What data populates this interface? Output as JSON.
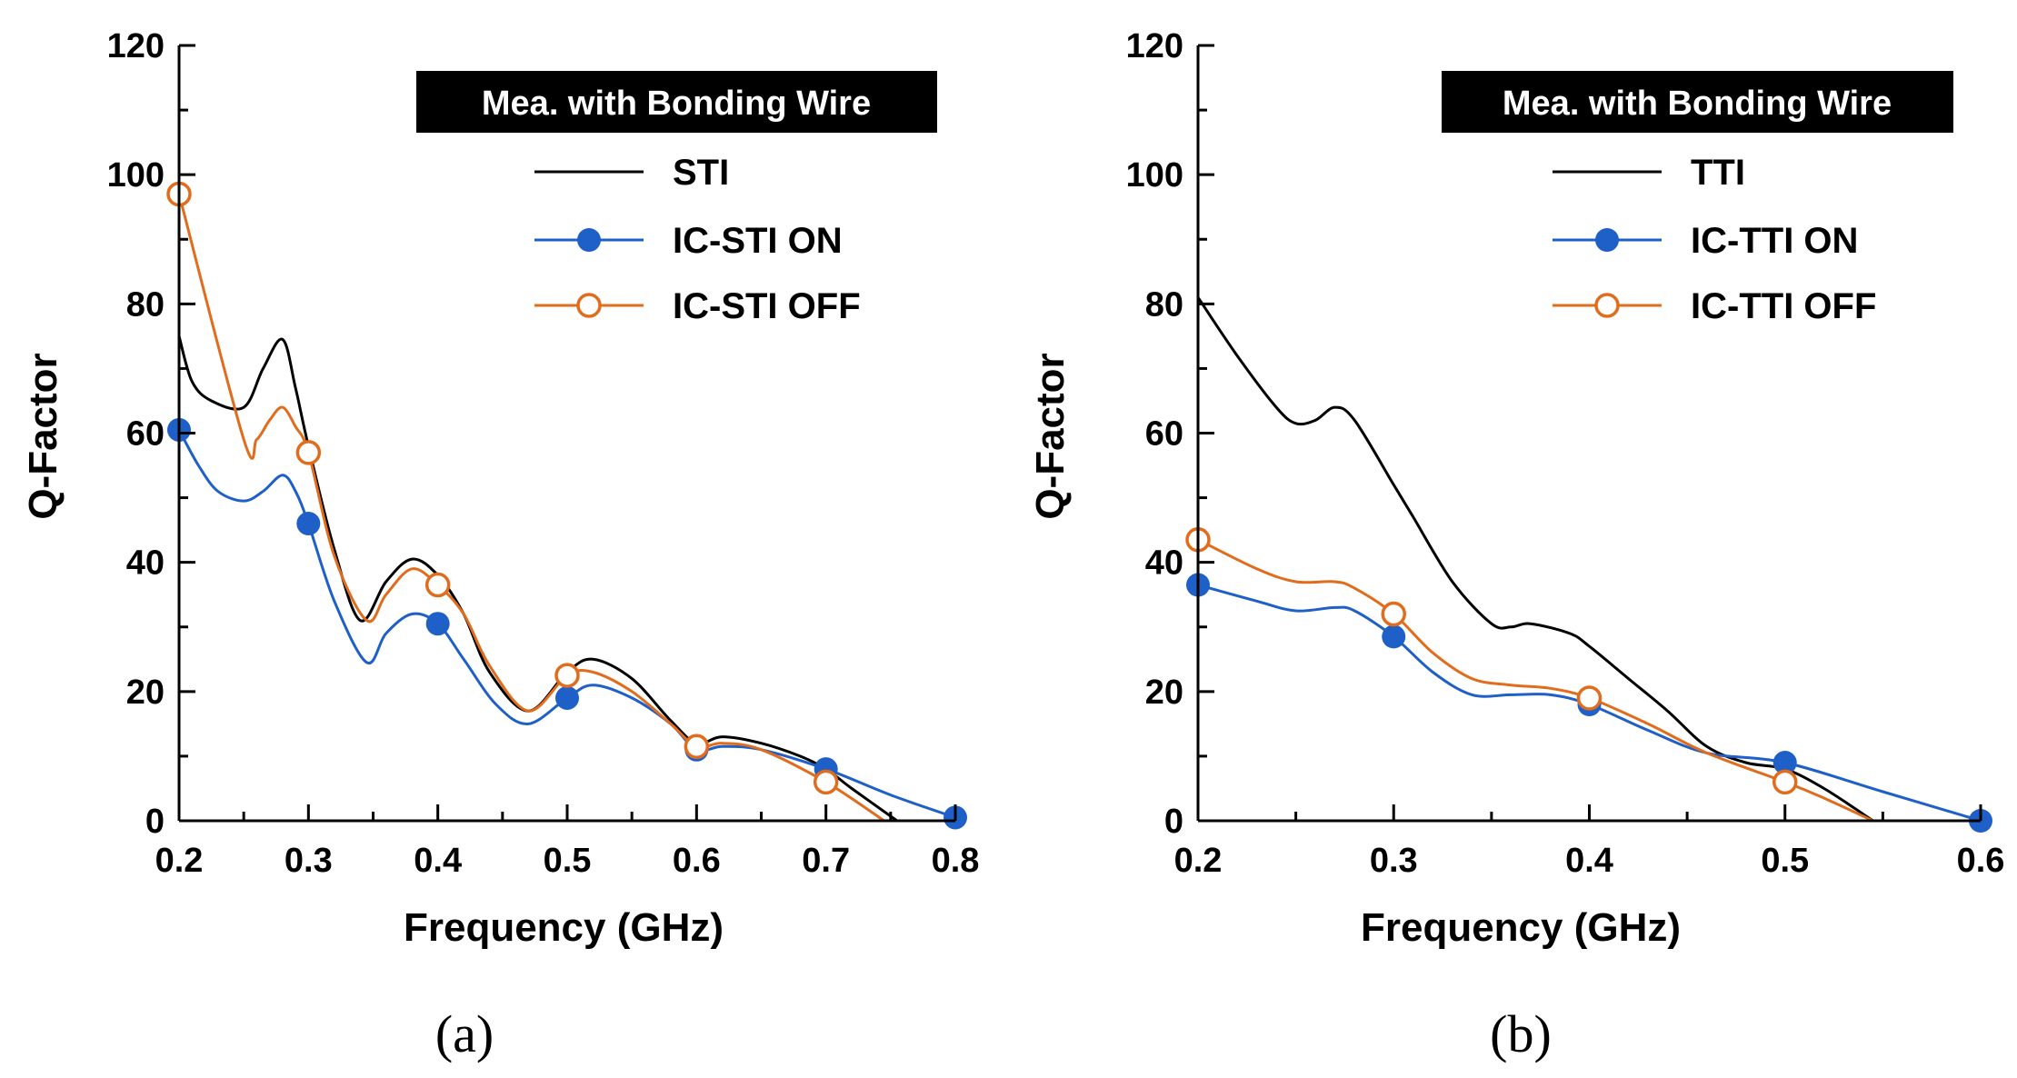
{
  "chart_data": [
    {
      "type": "line",
      "panel_label": "(a)",
      "title": "",
      "xlabel": "Frequency (GHz)",
      "ylabel": "Q-Factor",
      "xlim": [
        0.2,
        0.8
      ],
      "ylim": [
        0,
        120
      ],
      "xticks": [
        0.2,
        0.3,
        0.4,
        0.5,
        0.6,
        0.7,
        0.8
      ],
      "xtick_labels": [
        "0.2",
        "0.3",
        "0.4",
        "0.5",
        "0.6",
        "0.7",
        "0.8"
      ],
      "yticks": [
        0,
        20,
        40,
        60,
        80,
        100,
        120
      ],
      "ytick_labels": [
        "0",
        "20",
        "40",
        "60",
        "80",
        "100",
        "120"
      ],
      "annotation": "Mea. with Bonding Wire",
      "legend_position": "top-right",
      "series": [
        {
          "name": "STI",
          "color": "#000000",
          "marker": "none",
          "x": [
            0.2,
            0.21,
            0.225,
            0.25,
            0.265,
            0.28,
            0.29,
            0.3,
            0.32,
            0.34,
            0.36,
            0.38,
            0.4,
            0.42,
            0.44,
            0.47,
            0.5,
            0.52,
            0.55,
            0.58,
            0.6,
            0.62,
            0.65,
            0.68,
            0.7,
            0.72,
            0.755
          ],
          "y": [
            75,
            68,
            65,
            64,
            70,
            74.5,
            67,
            58,
            42,
            31,
            37,
            40.5,
            38,
            32,
            23,
            17,
            23,
            25,
            22,
            15.5,
            12,
            13,
            12,
            10,
            8,
            5,
            0
          ]
        },
        {
          "name": "IC-STI ON",
          "color": "#1f5fc8",
          "marker": "filled-circle",
          "markers_x": [
            0.2,
            0.3,
            0.4,
            0.5,
            0.6,
            0.7,
            0.8
          ],
          "markers_y": [
            60.5,
            46,
            30.5,
            19,
            11,
            8,
            0.5
          ],
          "x": [
            0.2,
            0.215,
            0.23,
            0.25,
            0.265,
            0.28,
            0.29,
            0.3,
            0.32,
            0.345,
            0.36,
            0.38,
            0.4,
            0.42,
            0.445,
            0.47,
            0.5,
            0.52,
            0.55,
            0.58,
            0.6,
            0.62,
            0.65,
            0.7,
            0.75,
            0.8
          ],
          "y": [
            60.5,
            55,
            51,
            49.5,
            51,
            53.5,
            51,
            46,
            34,
            24.5,
            29,
            32,
            30.5,
            25,
            18,
            15,
            19,
            21,
            19,
            15,
            11,
            11.5,
            11,
            8,
            4,
            0.5
          ]
        },
        {
          "name": "IC-STI OFF",
          "color": "#e06c1c",
          "marker": "open-circle",
          "markers_x": [
            0.2,
            0.3,
            0.4,
            0.5,
            0.6,
            0.7
          ],
          "markers_y": [
            97,
            57,
            36.5,
            22.5,
            11.5,
            6
          ],
          "x": [
            0.2,
            0.25,
            0.26,
            0.27,
            0.28,
            0.29,
            0.3,
            0.32,
            0.345,
            0.36,
            0.38,
            0.4,
            0.42,
            0.44,
            0.47,
            0.5,
            0.52,
            0.55,
            0.58,
            0.6,
            0.62,
            0.65,
            0.7,
            0.745
          ],
          "y": [
            97,
            59,
            59,
            62,
            64,
            61,
            57,
            41,
            31,
            35,
            39,
            36.5,
            32,
            24,
            17,
            22.5,
            23,
            20,
            15,
            11.5,
            12,
            11,
            6,
            0
          ]
        }
      ]
    },
    {
      "type": "line",
      "panel_label": "(b)",
      "title": "",
      "xlabel": "Frequency (GHz)",
      "ylabel": "Q-Factor",
      "xlim": [
        0.2,
        0.6
      ],
      "ylim": [
        0,
        120
      ],
      "xticks": [
        0.2,
        0.3,
        0.4,
        0.5,
        0.6
      ],
      "xtick_labels": [
        "0.2",
        "0.3",
        "0.4",
        "0.5",
        "0.6"
      ],
      "yticks": [
        0,
        20,
        40,
        60,
        80,
        100,
        120
      ],
      "ytick_labels": [
        "0",
        "20",
        "40",
        "60",
        "80",
        "100",
        "120"
      ],
      "annotation": "Mea. with Bonding Wire",
      "legend_position": "top-right",
      "series": [
        {
          "name": "TTI",
          "color": "#000000",
          "marker": "none",
          "x": [
            0.2,
            0.22,
            0.24,
            0.25,
            0.26,
            0.27,
            0.28,
            0.3,
            0.31,
            0.33,
            0.35,
            0.36,
            0.37,
            0.39,
            0.4,
            0.42,
            0.44,
            0.46,
            0.48,
            0.5,
            0.52,
            0.545
          ],
          "y": [
            81,
            72,
            64,
            61.5,
            62,
            64,
            62,
            52,
            47,
            37,
            30.5,
            30,
            30.5,
            29,
            27,
            22,
            17,
            11.5,
            9,
            8,
            5,
            0
          ]
        },
        {
          "name": "IC-TTI ON",
          "color": "#1f5fc8",
          "marker": "filled-circle",
          "markers_x": [
            0.2,
            0.3,
            0.4,
            0.5,
            0.6
          ],
          "markers_y": [
            36.5,
            28.5,
            18,
            9,
            0
          ],
          "x": [
            0.2,
            0.23,
            0.25,
            0.27,
            0.28,
            0.3,
            0.32,
            0.34,
            0.36,
            0.38,
            0.4,
            0.43,
            0.46,
            0.5,
            0.55,
            0.6
          ],
          "y": [
            36.5,
            34,
            32.5,
            33,
            32.5,
            28.5,
            23,
            19.5,
            19.5,
            19.5,
            18,
            14,
            10.5,
            9,
            4.5,
            0
          ]
        },
        {
          "name": "IC-TTI OFF",
          "color": "#e06c1c",
          "marker": "open-circle",
          "markers_x": [
            0.2,
            0.3,
            0.4,
            0.5
          ],
          "markers_y": [
            43.5,
            32,
            19,
            6
          ],
          "x": [
            0.2,
            0.23,
            0.25,
            0.27,
            0.28,
            0.3,
            0.32,
            0.34,
            0.36,
            0.38,
            0.4,
            0.43,
            0.46,
            0.5,
            0.52,
            0.545
          ],
          "y": [
            43.5,
            39,
            37,
            37,
            36,
            32,
            26,
            22,
            21,
            20.5,
            19,
            15,
            10.5,
            6,
            3.5,
            0
          ]
        }
      ]
    }
  ]
}
